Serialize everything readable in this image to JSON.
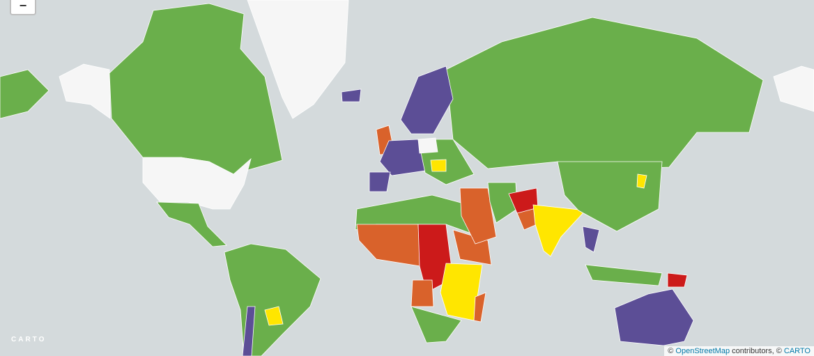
{
  "zoom_control": {
    "zoom_out": "−"
  },
  "logo": "CARTO",
  "attribution": {
    "prefix": "©",
    "osm_link": "OpenStreetMap",
    "middle": "contributors, ©",
    "carto_link": "CARTO"
  }
}
